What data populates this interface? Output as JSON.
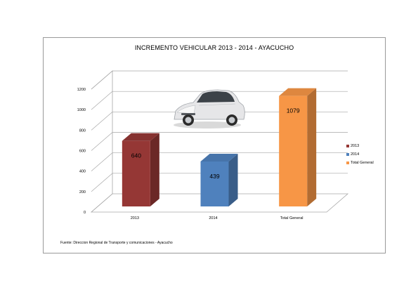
{
  "chart_data": {
    "type": "bar",
    "title": "INCREMENTO VEHICULAR 2013 - 2014 - AYACUCHO",
    "categories": [
      "2013",
      "2014",
      "Total General"
    ],
    "values": [
      640,
      439,
      1079
    ],
    "data_labels": [
      "640",
      "439",
      "1079"
    ],
    "colors": [
      "#953735",
      "#4f81bd",
      "#f79646"
    ],
    "y_ticks": [
      "0",
      "200",
      "400",
      "600",
      "800",
      "1000",
      "1200"
    ],
    "ylim": [
      0,
      1200
    ],
    "legend": [
      "2013",
      "2014",
      "Total General"
    ],
    "legend_position": "right",
    "grid": true,
    "three_d": true,
    "source": "Fuente: Direccion Regional de Transporte y comunicaciones - Ayacucho",
    "image": "car-photo"
  }
}
